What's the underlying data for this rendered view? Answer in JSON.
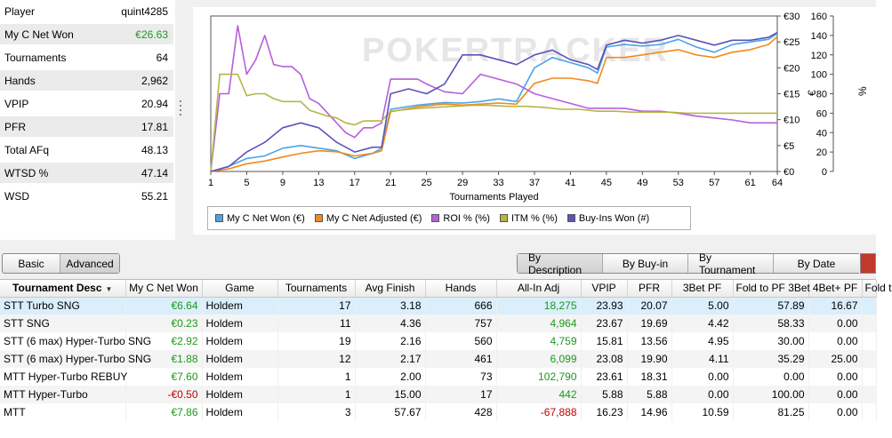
{
  "stats": [
    {
      "label": "Player",
      "value": "quint4285",
      "color": ""
    },
    {
      "label": "My C Net Won",
      "value": "€26.63",
      "color": "green"
    },
    {
      "label": "Tournaments",
      "value": "64",
      "color": ""
    },
    {
      "label": "Hands",
      "value": "2,962",
      "color": ""
    },
    {
      "label": "VPIP",
      "value": "20.94",
      "color": ""
    },
    {
      "label": "PFR",
      "value": "17.81",
      "color": ""
    },
    {
      "label": "Total AFq",
      "value": "48.13",
      "color": ""
    },
    {
      "label": "WTSD %",
      "value": "47.14",
      "color": ""
    },
    {
      "label": "WSD",
      "value": "55.21",
      "color": ""
    }
  ],
  "chart": {
    "watermark": "POKERTRACKER",
    "xlabel": "Tournaments Played",
    "left_axis_unit": "€",
    "right_axis_unit": "%"
  },
  "chart_data": {
    "type": "line",
    "xlabel": "Tournaments Played",
    "xlim": [
      1,
      64
    ],
    "x_ticks": [
      "1",
      "5",
      "9",
      "13",
      "17",
      "21",
      "25",
      "29",
      "33",
      "37",
      "41",
      "45",
      "49",
      "53",
      "57",
      "61",
      "64"
    ],
    "y_left": {
      "unit": "€",
      "lim": [
        0,
        30
      ],
      "ticks": [
        "€0",
        "€5",
        "€10",
        "€15",
        "€20",
        "€25",
        "€30"
      ]
    },
    "y_right": {
      "unit": "%",
      "lim": [
        0,
        160
      ],
      "ticks": [
        "0",
        "20",
        "40",
        "60",
        "80",
        "100",
        "120",
        "140",
        "160"
      ]
    },
    "series": [
      {
        "name": "My C Net Won (€)",
        "color": "#4aa3e8",
        "axis": "left",
        "points": [
          [
            1,
            0
          ],
          [
            3,
            1
          ],
          [
            5,
            2.5
          ],
          [
            7,
            3
          ],
          [
            9,
            4.5
          ],
          [
            11,
            5
          ],
          [
            13,
            4.5
          ],
          [
            15,
            4
          ],
          [
            17,
            2.5
          ],
          [
            19,
            3.5
          ],
          [
            20,
            4.5
          ],
          [
            21,
            12
          ],
          [
            24,
            12.8
          ],
          [
            27,
            13.3
          ],
          [
            29,
            13.2
          ],
          [
            31,
            13.5
          ],
          [
            33,
            14
          ],
          [
            35,
            13.5
          ],
          [
            37,
            20
          ],
          [
            39,
            22
          ],
          [
            41,
            21
          ],
          [
            43,
            20
          ],
          [
            44,
            19
          ],
          [
            45,
            24
          ],
          [
            47,
            24.5
          ],
          [
            49,
            24.2
          ],
          [
            51,
            24.5
          ],
          [
            53,
            25.5
          ],
          [
            55,
            24
          ],
          [
            57,
            23
          ],
          [
            59,
            24.5
          ],
          [
            61,
            25
          ],
          [
            63,
            25.5
          ],
          [
            64,
            26.6
          ]
        ]
      },
      {
        "name": "My C Net Adjusted (€)",
        "color": "#f08a1c",
        "axis": "left",
        "points": [
          [
            1,
            0
          ],
          [
            3,
            0.5
          ],
          [
            5,
            1.5
          ],
          [
            7,
            2
          ],
          [
            9,
            2.8
          ],
          [
            11,
            3.5
          ],
          [
            13,
            4
          ],
          [
            15,
            3.8
          ],
          [
            17,
            3
          ],
          [
            19,
            3.5
          ],
          [
            20,
            4
          ],
          [
            21,
            11.5
          ],
          [
            24,
            12.5
          ],
          [
            27,
            13
          ],
          [
            29,
            12.8
          ],
          [
            31,
            13
          ],
          [
            33,
            13.2
          ],
          [
            35,
            13
          ],
          [
            37,
            17
          ],
          [
            39,
            18
          ],
          [
            41,
            18
          ],
          [
            43,
            17.5
          ],
          [
            44,
            17
          ],
          [
            45,
            22
          ],
          [
            47,
            22
          ],
          [
            49,
            22.5
          ],
          [
            51,
            23
          ],
          [
            53,
            23.5
          ],
          [
            55,
            22.5
          ],
          [
            57,
            22
          ],
          [
            59,
            23
          ],
          [
            61,
            23.5
          ],
          [
            63,
            24.5
          ],
          [
            64,
            26
          ]
        ]
      },
      {
        "name": "ROI % (%)",
        "color": "#b65fdb",
        "axis": "right",
        "points": [
          [
            1,
            0
          ],
          [
            2,
            80
          ],
          [
            3,
            80
          ],
          [
            4,
            150
          ],
          [
            5,
            100
          ],
          [
            6,
            115
          ],
          [
            7,
            140
          ],
          [
            8,
            110
          ],
          [
            9,
            108
          ],
          [
            10,
            108
          ],
          [
            11,
            100
          ],
          [
            12,
            75
          ],
          [
            13,
            70
          ],
          [
            14,
            60
          ],
          [
            15,
            50
          ],
          [
            16,
            40
          ],
          [
            17,
            35
          ],
          [
            18,
            45
          ],
          [
            19,
            45
          ],
          [
            20,
            50
          ],
          [
            21,
            95
          ],
          [
            22,
            95
          ],
          [
            24,
            95
          ],
          [
            25,
            90
          ],
          [
            27,
            82
          ],
          [
            29,
            80
          ],
          [
            31,
            100
          ],
          [
            33,
            95
          ],
          [
            35,
            90
          ],
          [
            37,
            80
          ],
          [
            39,
            75
          ],
          [
            41,
            70
          ],
          [
            43,
            65
          ],
          [
            45,
            65
          ],
          [
            47,
            65
          ],
          [
            49,
            62
          ],
          [
            51,
            62
          ],
          [
            53,
            60
          ],
          [
            55,
            57
          ],
          [
            57,
            55
          ],
          [
            59,
            53
          ],
          [
            61,
            50
          ],
          [
            63,
            50
          ],
          [
            64,
            50
          ]
        ]
      },
      {
        "name": "ITM % (%)",
        "color": "#b5b54a",
        "axis": "right",
        "points": [
          [
            1,
            0
          ],
          [
            2,
            100
          ],
          [
            3,
            100
          ],
          [
            4,
            100
          ],
          [
            5,
            78
          ],
          [
            6,
            80
          ],
          [
            7,
            80
          ],
          [
            8,
            75
          ],
          [
            9,
            72
          ],
          [
            10,
            72
          ],
          [
            11,
            72
          ],
          [
            12,
            63
          ],
          [
            13,
            60
          ],
          [
            14,
            57
          ],
          [
            15,
            55
          ],
          [
            16,
            50
          ],
          [
            17,
            48
          ],
          [
            18,
            52
          ],
          [
            19,
            52
          ],
          [
            20,
            52
          ],
          [
            21,
            62
          ],
          [
            22,
            63
          ],
          [
            24,
            65
          ],
          [
            26,
            66
          ],
          [
            28,
            67
          ],
          [
            30,
            68
          ],
          [
            32,
            68
          ],
          [
            34,
            67
          ],
          [
            36,
            67
          ],
          [
            38,
            66
          ],
          [
            40,
            64
          ],
          [
            42,
            64
          ],
          [
            44,
            62
          ],
          [
            46,
            62
          ],
          [
            48,
            61
          ],
          [
            50,
            61
          ],
          [
            52,
            61
          ],
          [
            54,
            60
          ],
          [
            56,
            60
          ],
          [
            58,
            60
          ],
          [
            60,
            60
          ],
          [
            62,
            60
          ],
          [
            64,
            60
          ]
        ]
      },
      {
        "name": "Buy-Ins Won (#)",
        "color": "#5b54b8",
        "axis": "right",
        "points": [
          [
            1,
            0
          ],
          [
            3,
            5
          ],
          [
            5,
            20
          ],
          [
            7,
            30
          ],
          [
            9,
            45
          ],
          [
            11,
            50
          ],
          [
            13,
            45
          ],
          [
            15,
            30
          ],
          [
            17,
            20
          ],
          [
            19,
            25
          ],
          [
            20,
            25
          ],
          [
            21,
            80
          ],
          [
            23,
            85
          ],
          [
            25,
            80
          ],
          [
            27,
            90
          ],
          [
            29,
            120
          ],
          [
            31,
            120
          ],
          [
            33,
            115
          ],
          [
            35,
            110
          ],
          [
            37,
            120
          ],
          [
            39,
            125
          ],
          [
            41,
            115
          ],
          [
            43,
            110
          ],
          [
            44,
            105
          ],
          [
            45,
            130
          ],
          [
            47,
            135
          ],
          [
            49,
            132
          ],
          [
            51,
            135
          ],
          [
            53,
            140
          ],
          [
            55,
            135
          ],
          [
            57,
            130
          ],
          [
            59,
            135
          ],
          [
            61,
            135
          ],
          [
            63,
            138
          ],
          [
            64,
            143
          ]
        ]
      }
    ]
  },
  "toolbar": {
    "view_buttons": [
      "Basic",
      "Advanced"
    ],
    "group_buttons": [
      "By Description",
      "By Buy-in",
      "By Tournament",
      "By Date"
    ]
  },
  "table": {
    "columns": [
      "Tournament Desc",
      "My C Net Won",
      "Game",
      "Tournaments",
      "Avg Finish",
      "Hands",
      "All-In Adj",
      "VPIP",
      "PFR",
      "3Bet PF",
      "Fold to PF 3Bet",
      "4Bet+ PF",
      "Fold t"
    ],
    "rows": [
      {
        "desc": "STT Turbo SNG",
        "net": "€6.64",
        "net_sign": "pos",
        "game": "Holdem",
        "tournaments": "17",
        "avg_finish": "3.18",
        "hands": "666",
        "allin": "18,275",
        "allin_sign": "pos",
        "vpip": "23.93",
        "pfr": "20.07",
        "threebet": "5.00",
        "fold3bet": "57.89",
        "fourbet": "16.67"
      },
      {
        "desc": "STT SNG",
        "net": "€0.23",
        "net_sign": "pos",
        "game": "Holdem",
        "tournaments": "11",
        "avg_finish": "4.36",
        "hands": "757",
        "allin": "4,964",
        "allin_sign": "pos",
        "vpip": "23.67",
        "pfr": "19.69",
        "threebet": "4.42",
        "fold3bet": "58.33",
        "fourbet": "0.00"
      },
      {
        "desc": "STT (6 max) Hyper-Turbo SNG",
        "net": "€2.92",
        "net_sign": "pos",
        "game": "Holdem",
        "tournaments": "19",
        "avg_finish": "2.16",
        "hands": "560",
        "allin": "4,759",
        "allin_sign": "pos",
        "vpip": "15.81",
        "pfr": "13.56",
        "threebet": "4.95",
        "fold3bet": "30.00",
        "fourbet": "0.00"
      },
      {
        "desc": "STT (6 max) Hyper-Turbo SNG",
        "net": "€1.88",
        "net_sign": "pos",
        "game": "Holdem",
        "tournaments": "12",
        "avg_finish": "2.17",
        "hands": "461",
        "allin": "6,099",
        "allin_sign": "pos",
        "vpip": "23.08",
        "pfr": "19.90",
        "threebet": "4.11",
        "fold3bet": "35.29",
        "fourbet": "25.00"
      },
      {
        "desc": "MTT Hyper-Turbo REBUY",
        "net": "€7.60",
        "net_sign": "pos",
        "game": "Holdem",
        "tournaments": "1",
        "avg_finish": "2.00",
        "hands": "73",
        "allin": "102,790",
        "allin_sign": "pos",
        "vpip": "23.61",
        "pfr": "18.31",
        "threebet": "0.00",
        "fold3bet": "0.00",
        "fourbet": "0.00"
      },
      {
        "desc": "MTT Hyper-Turbo",
        "net": "-€0.50",
        "net_sign": "neg",
        "game": "Holdem",
        "tournaments": "1",
        "avg_finish": "15.00",
        "hands": "17",
        "allin": "442",
        "allin_sign": "pos",
        "vpip": "5.88",
        "pfr": "5.88",
        "threebet": "0.00",
        "fold3bet": "100.00",
        "fourbet": "0.00"
      },
      {
        "desc": "MTT",
        "net": "€7.86",
        "net_sign": "pos",
        "game": "Holdem",
        "tournaments": "3",
        "avg_finish": "57.67",
        "hands": "428",
        "allin": "-67,888",
        "allin_sign": "neg",
        "vpip": "16.23",
        "pfr": "14.96",
        "threebet": "10.59",
        "fold3bet": "81.25",
        "fourbet": "0.00"
      }
    ]
  }
}
